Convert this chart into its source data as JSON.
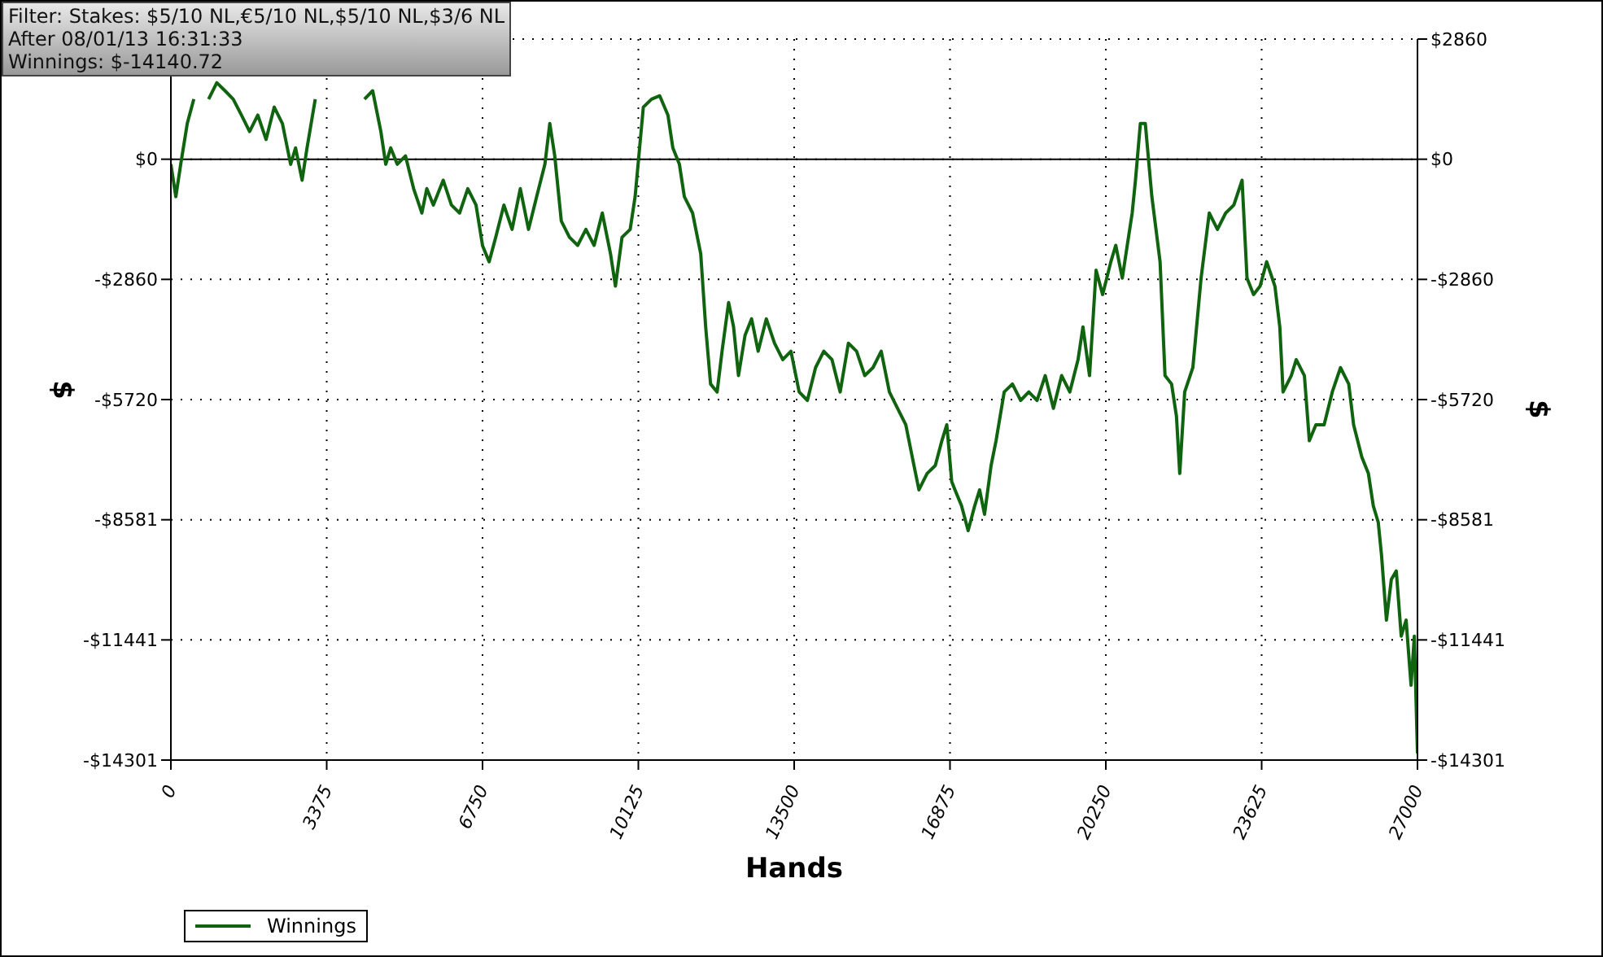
{
  "chart_data": {
    "type": "line",
    "xlabel": "Hands",
    "ylabel": "$",
    "y2label": "$",
    "annotations": [
      "Filter: Stakes: $5/10 NL,€5/10 NL,$5/10 NL,$3/6 NL",
      "After 08/01/13 16:31:33",
      "Winnings: $-14140.72"
    ],
    "x": [
      0,
      107,
      213,
      355,
      497,
      640,
      817,
      995,
      1172,
      1350,
      1528,
      1705,
      1883,
      2061,
      2238,
      2416,
      2594,
      2700,
      2842,
      2949,
      3127,
      3304,
      3482,
      3660,
      3837,
      4015,
      4193,
      4370,
      4548,
      4654,
      4761,
      4903,
      5081,
      5258,
      5436,
      5543,
      5685,
      5898,
      6076,
      6253,
      6431,
      6609,
      6751,
      6893,
      7035,
      7213,
      7390,
      7568,
      7746,
      7923,
      8101,
      8207,
      8314,
      8456,
      8634,
      8811,
      8989,
      9167,
      9344,
      9522,
      9629,
      9771,
      9948,
      10055,
      10233,
      10410,
      10588,
      10766,
      10872,
      11014,
      11121,
      11299,
      11476,
      11583,
      11689,
      11831,
      11938,
      12080,
      12187,
      12294,
      12436,
      12578,
      12720,
      12897,
      13075,
      13253,
      13430,
      13608,
      13786,
      13963,
      14141,
      14319,
      14496,
      14674,
      14852,
      15029,
      15207,
      15385,
      15562,
      15740,
      15917,
      16095,
      16202,
      16379,
      16557,
      16699,
      16806,
      16912,
      16983,
      17125,
      17268,
      17410,
      17516,
      17623,
      17765,
      17872,
      18049,
      18227,
      18405,
      18582,
      18760,
      18937,
      19115,
      19293,
      19470,
      19648,
      19755,
      19897,
      20039,
      20181,
      20359,
      20465,
      20607,
      20714,
      20821,
      20892,
      20998,
      21105,
      21247,
      21425,
      21532,
      21674,
      21780,
      21851,
      21958,
      22135,
      22313,
      22490,
      22668,
      22846,
      23023,
      23201,
      23308,
      23450,
      23592,
      23734,
      23912,
      24018,
      24089,
      24267,
      24374,
      24551,
      24658,
      24800,
      24978,
      25155,
      25333,
      25511,
      25617,
      25795,
      25937,
      26043,
      26150,
      26221,
      26328,
      26434,
      26541,
      26648,
      26754,
      26861,
      26932,
      27000
    ],
    "series": [
      {
        "name": "Winnings",
        "color": "#106410",
        "values": [
          -120,
          -890,
          -120,
          850,
          1430,
          null,
          1430,
          1820,
          1630,
          1430,
          1050,
          660,
          1050,
          470,
          1240,
          850,
          -120,
          270,
          -500,
          270,
          1430,
          null,
          null,
          null,
          null,
          null,
          1430,
          1630,
          660,
          -120,
          270,
          -120,
          80,
          -700,
          -1280,
          -700,
          -1090,
          -500,
          -1090,
          -1280,
          -700,
          -1090,
          -2060,
          -2440,
          -1860,
          -1090,
          -1670,
          -700,
          -1670,
          -890,
          -120,
          850,
          80,
          -1470,
          -1860,
          -2050,
          -1670,
          -2050,
          -1280,
          -2250,
          -3020,
          -1860,
          -1670,
          -890,
          1240,
          1430,
          1510,
          1050,
          270,
          -120,
          -890,
          -1280,
          -2250,
          -3990,
          -5350,
          -5540,
          -4570,
          -3410,
          -3990,
          -5150,
          -4190,
          -3800,
          -4570,
          -3800,
          -4380,
          -4770,
          -4570,
          -5540,
          -5740,
          -4960,
          -4570,
          -4770,
          -5540,
          -4380,
          -4570,
          -5150,
          -4960,
          -4570,
          -5540,
          -5930,
          -6320,
          -7290,
          -7870,
          -7480,
          -7290,
          -6700,
          -6320,
          -7670,
          -7870,
          -8250,
          -8840,
          -8250,
          -7870,
          -8450,
          -7290,
          -6700,
          -5540,
          -5350,
          -5740,
          -5540,
          -5740,
          -5150,
          -5930,
          -5150,
          -5540,
          -4770,
          -3990,
          -5150,
          -2640,
          -3220,
          -2440,
          -2050,
          -2830,
          -2050,
          -1280,
          -500,
          850,
          850,
          -890,
          -2440,
          -5150,
          -5350,
          -6120,
          -7480,
          -5540,
          -4960,
          -2830,
          -1280,
          -1670,
          -1280,
          -1090,
          -500,
          -2830,
          -3220,
          -3020,
          -2440,
          -3020,
          -3990,
          -5540,
          -5150,
          -4770,
          -5150,
          -6700,
          -6320,
          -6320,
          -5540,
          -4960,
          -5350,
          -6320,
          -7090,
          -7480,
          -8250,
          -8640,
          -9420,
          -10970,
          -10000,
          -9800,
          -11350,
          -10970,
          -12520,
          -11350,
          -14140.72
        ]
      }
    ],
    "xlim": [
      0,
      27000
    ],
    "xticks": [
      0,
      3375,
      6750,
      10125,
      13500,
      16875,
      20250,
      23625,
      27000
    ],
    "ylim": [
      -14301,
      2860
    ],
    "yticks": [
      {
        "value": 2860,
        "label": null
      },
      {
        "value": 0,
        "label": "$0"
      },
      {
        "value": -2860,
        "label": "-$2860"
      },
      {
        "value": -5720,
        "label": "-$5720"
      },
      {
        "value": -8581,
        "label": "-$8581"
      },
      {
        "value": -11441,
        "label": "-$11441"
      },
      {
        "value": -14301,
        "label": "-$14301"
      }
    ],
    "y2lim": [
      -14301,
      2860
    ],
    "y2ticks": [
      {
        "value": 2860,
        "label": "$2860"
      },
      {
        "value": 0,
        "label": "$0"
      },
      {
        "value": -2860,
        "label": "-$2860"
      },
      {
        "value": -5720,
        "label": "-$5720"
      },
      {
        "value": -8581,
        "label": "-$8581"
      },
      {
        "value": -11441,
        "label": "-$11441"
      },
      {
        "value": -14301,
        "label": "-$14301"
      }
    ],
    "ref_lines": [
      {
        "axis": "y",
        "value": 0,
        "color": "#000000"
      }
    ],
    "grid": true,
    "legend": "bottom left",
    "marker": "none",
    "line_style": "solid"
  }
}
